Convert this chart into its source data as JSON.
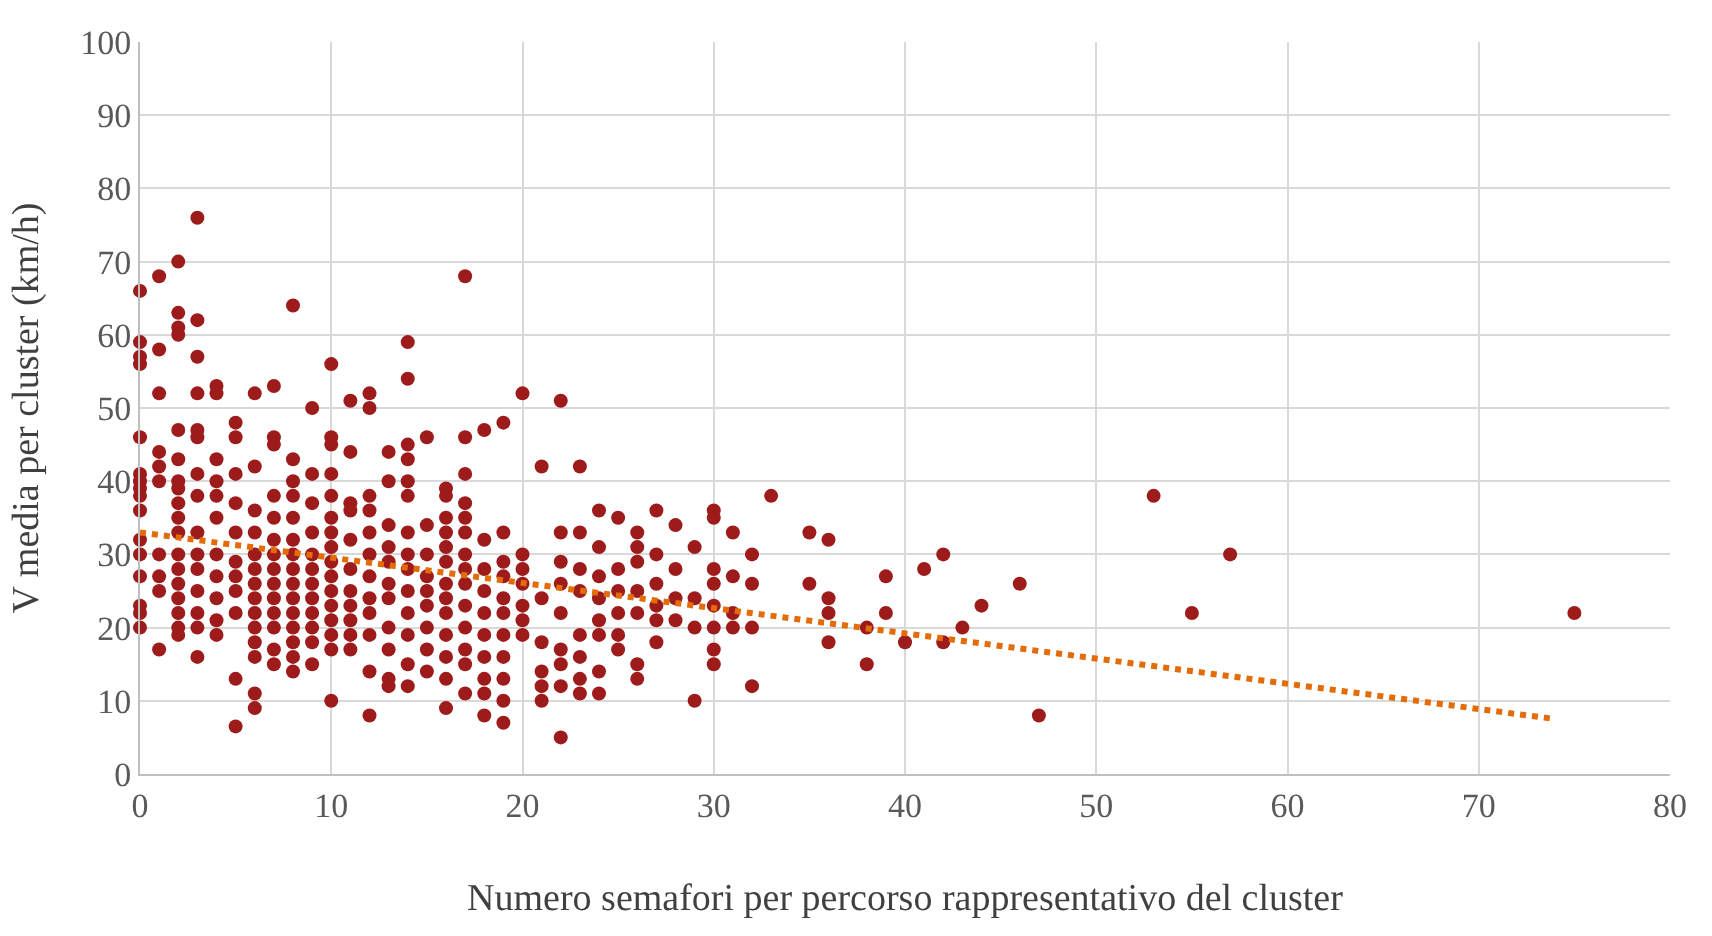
{
  "chart_data": {
    "type": "scatter",
    "xlabel": "Numero semafori per percorso rappresentativo del cluster",
    "ylabel": "V media per cluster (km/h)",
    "xlim": [
      0,
      80
    ],
    "xticks": [
      0,
      10,
      20,
      30,
      40,
      50,
      60,
      70,
      80
    ],
    "ylim": [
      0,
      100
    ],
    "yticks": [
      0,
      10,
      20,
      30,
      40,
      50,
      60,
      70,
      80,
      90,
      100
    ],
    "grid": true,
    "marker": "circle",
    "series": [
      {
        "color": "#9e1b1b",
        "x": [
          0,
          0,
          0,
          0,
          0,
          0,
          0,
          0,
          0,
          0,
          0,
          0,
          0,
          0,
          0,
          0,
          1,
          1,
          1,
          1,
          1,
          1,
          1,
          1,
          1,
          1,
          2,
          2,
          2,
          2,
          2,
          2,
          2,
          2,
          2,
          2,
          2,
          2,
          2,
          2,
          2,
          2,
          2,
          2,
          3,
          3,
          3,
          3,
          3,
          3,
          3,
          3,
          3,
          3,
          3,
          3,
          3,
          3,
          3,
          4,
          4,
          4,
          4,
          4,
          4,
          4,
          4,
          4,
          4,
          4,
          5,
          5,
          5,
          5,
          5,
          5,
          5,
          5,
          5,
          5,
          5,
          6,
          6,
          6,
          6,
          6,
          6,
          6,
          6,
          6,
          6,
          6,
          6,
          6,
          6,
          7,
          7,
          7,
          7,
          7,
          7,
          7,
          7,
          7,
          7,
          7,
          7,
          7,
          7,
          8,
          8,
          8,
          8,
          8,
          8,
          8,
          8,
          8,
          8,
          8,
          8,
          8,
          8,
          8,
          9,
          9,
          9,
          9,
          9,
          9,
          9,
          9,
          9,
          9,
          9,
          9,
          10,
          10,
          10,
          10,
          10,
          10,
          10,
          10,
          10,
          10,
          10,
          10,
          10,
          10,
          10,
          10,
          11,
          11,
          11,
          11,
          11,
          11,
          11,
          11,
          11,
          11,
          11,
          12,
          12,
          12,
          12,
          12,
          12,
          12,
          12,
          12,
          12,
          12,
          12,
          13,
          13,
          13,
          13,
          13,
          13,
          13,
          13,
          13,
          13,
          13,
          14,
          14,
          14,
          14,
          14,
          14,
          14,
          14,
          14,
          14,
          14,
          14,
          14,
          14,
          15,
          15,
          15,
          15,
          15,
          15,
          15,
          15,
          15,
          16,
          16,
          16,
          16,
          16,
          16,
          16,
          16,
          16,
          16,
          16,
          16,
          16,
          17,
          17,
          17,
          17,
          17,
          17,
          17,
          17,
          17,
          17,
          17,
          17,
          17,
          17,
          18,
          18,
          18,
          18,
          18,
          18,
          18,
          18,
          18,
          18,
          19,
          19,
          19,
          19,
          19,
          19,
          19,
          19,
          19,
          19,
          19,
          20,
          20,
          20,
          20,
          20,
          20,
          20,
          21,
          21,
          21,
          21,
          21,
          21,
          22,
          22,
          22,
          22,
          22,
          22,
          22,
          22,
          22,
          23,
          23,
          23,
          23,
          23,
          23,
          23,
          23,
          24,
          24,
          24,
          24,
          24,
          24,
          24,
          24,
          25,
          25,
          25,
          25,
          25,
          25,
          26,
          26,
          26,
          26,
          26,
          26,
          26,
          27,
          27,
          27,
          27,
          27,
          27,
          28,
          28,
          28,
          28,
          29,
          29,
          29,
          29,
          30,
          30,
          30,
          30,
          30,
          30,
          30,
          30,
          31,
          31,
          31,
          31,
          32,
          32,
          32,
          32,
          33,
          35,
          35,
          36,
          36,
          36,
          36,
          38,
          38,
          39,
          39,
          40,
          41,
          42,
          42,
          43,
          44,
          46,
          47,
          53,
          55,
          57,
          75
        ],
        "values": [
          66,
          59,
          57,
          56,
          46,
          41,
          40,
          39,
          38,
          36,
          32,
          30,
          27,
          23,
          22,
          20,
          68,
          58,
          52,
          44,
          42,
          40,
          30,
          27,
          25,
          17,
          70,
          63,
          61,
          60,
          47,
          43,
          40,
          39,
          37,
          35,
          33,
          30,
          28,
          26,
          24,
          22,
          20,
          19,
          76,
          62,
          57,
          52,
          47,
          46,
          41,
          38,
          33,
          30,
          28,
          25,
          22,
          20,
          16,
          53,
          52,
          43,
          40,
          38,
          35,
          30,
          27,
          24,
          21,
          19,
          48,
          46,
          41,
          37,
          33,
          29,
          27,
          25,
          22,
          13,
          6.5,
          52,
          42,
          36,
          33,
          30,
          28,
          26,
          24,
          22,
          20,
          18,
          16,
          11,
          9,
          53,
          46,
          45,
          38,
          35,
          32,
          30,
          28,
          26,
          24,
          22,
          20,
          17,
          15,
          64,
          43,
          40,
          38,
          35,
          32,
          30,
          28,
          26,
          24,
          22,
          20,
          18,
          16,
          14,
          50,
          41,
          37,
          33,
          30,
          28,
          26,
          24,
          22,
          20,
          18,
          15,
          56,
          46,
          45,
          41,
          38,
          35,
          33,
          31,
          29,
          27,
          25,
          23,
          21,
          19,
          17,
          10,
          51,
          44,
          37,
          36,
          32,
          28,
          25,
          23,
          21,
          19,
          17,
          52,
          50,
          38,
          36,
          33,
          30,
          27,
          24,
          22,
          19,
          14,
          8,
          44,
          40,
          34,
          31,
          29,
          26,
          24,
          20,
          17,
          13,
          12,
          59,
          54,
          45,
          43,
          40,
          38,
          33,
          30,
          28,
          25,
          22,
          19,
          15,
          12,
          46,
          34,
          30,
          27,
          25,
          23,
          20,
          17,
          14,
          39,
          38,
          35,
          33,
          31,
          29,
          26,
          24,
          22,
          19,
          16,
          13,
          9,
          68,
          46,
          41,
          37,
          35,
          33,
          30,
          28,
          26,
          23,
          20,
          17,
          15,
          11,
          47,
          32,
          28,
          25,
          22,
          19,
          16,
          13,
          11,
          8,
          48,
          33,
          29,
          27,
          24,
          22,
          19,
          16,
          13,
          10,
          7,
          52,
          30,
          28,
          26,
          23,
          21,
          19,
          42,
          24,
          18,
          14,
          12,
          10,
          51,
          33,
          29,
          26,
          22,
          17,
          15,
          12,
          5,
          42,
          33,
          28,
          25,
          19,
          16,
          13,
          11,
          36,
          31,
          27,
          24,
          21,
          19,
          14,
          11,
          35,
          28,
          25,
          22,
          19,
          17,
          33,
          31,
          29,
          25,
          22,
          15,
          13,
          36,
          30,
          26,
          23,
          21,
          18,
          34,
          28,
          24,
          21,
          31,
          24,
          20,
          10,
          36,
          35,
          28,
          26,
          23,
          20,
          17,
          15,
          33,
          27,
          22,
          20,
          30,
          26,
          20,
          12,
          38,
          33,
          26,
          32,
          24,
          22,
          18,
          20,
          15,
          27,
          22,
          18,
          28,
          30,
          18,
          20,
          23,
          26,
          8,
          38,
          22,
          30,
          22
        ]
      },
      {
        "type": "line",
        "color": "#e36c09",
        "x": [
          0,
          74
        ],
        "values": [
          33,
          7.5
        ],
        "line_style": "dotted",
        "marker": "none"
      }
    ]
  }
}
